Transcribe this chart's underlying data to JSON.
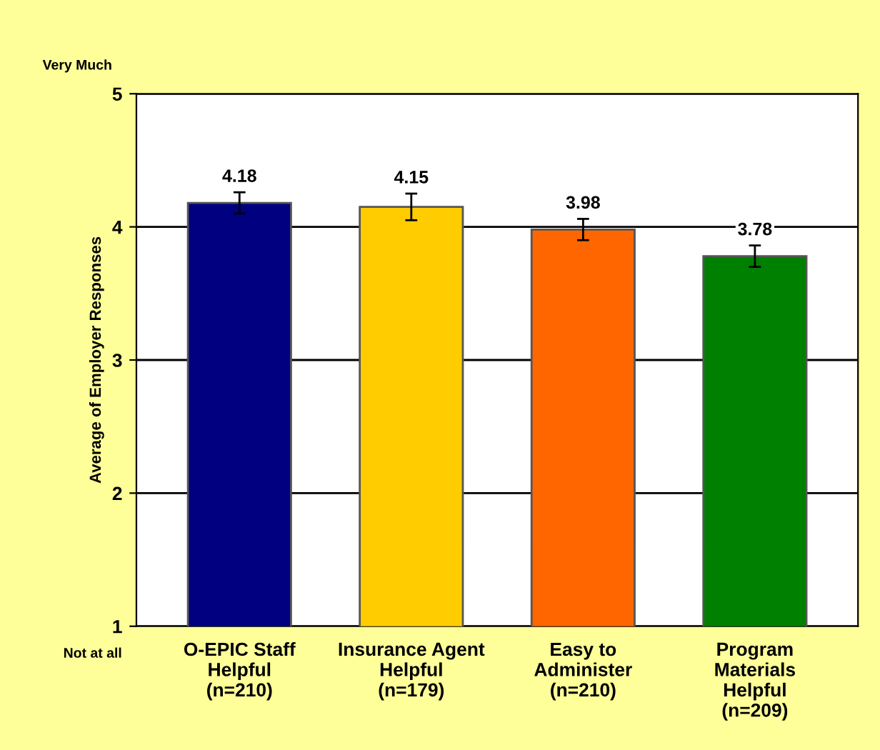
{
  "chart_data": {
    "type": "bar",
    "ylabel": "Average of Employer Responses",
    "categories": [
      "O-EPIC Staff\nHelpful\n(n=210)",
      "Insurance Agent\nHelpful\n(n=179)",
      "Easy to\nAdminister\n(n=210)",
      "Program\nMaterials\nHelpful\n(n=209)"
    ],
    "values": [
      4.18,
      4.15,
      3.98,
      3.78
    ],
    "colors": [
      "#000080",
      "#ffcc00",
      "#ff6600",
      "#008000"
    ],
    "errors": [
      0.08,
      0.1,
      0.08,
      0.08
    ],
    "data_labels": true,
    "ylim": [
      1,
      5
    ],
    "yticks": [
      1,
      2,
      3,
      4,
      5
    ],
    "grid": "y",
    "annotations": [
      "Very Much",
      "Not at all"
    ]
  }
}
